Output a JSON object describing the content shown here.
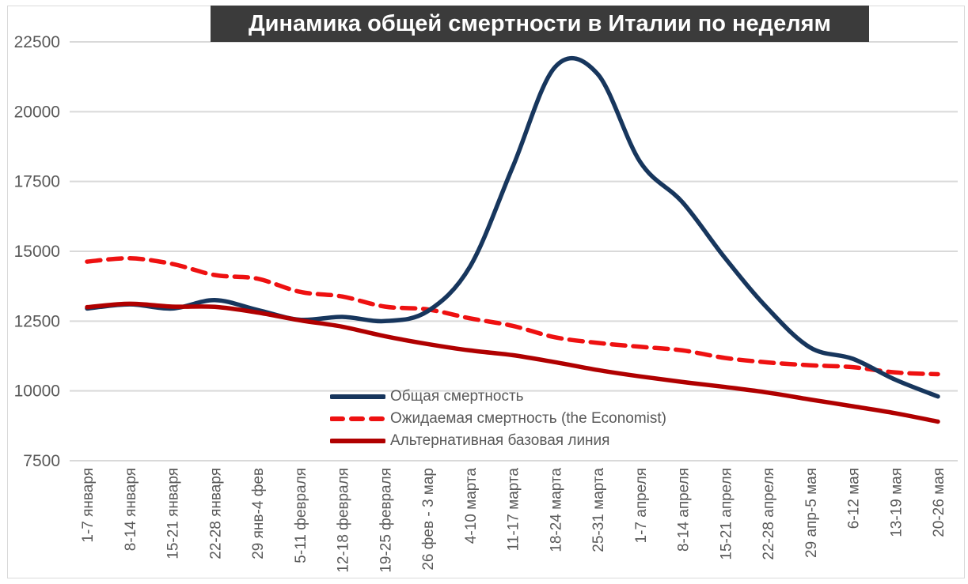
{
  "chart_data": {
    "type": "line",
    "title": "Динамика общей смертности в Италии по неделям",
    "categories": [
      "1-7 января",
      "8-14 января",
      "15-21 января",
      "22-28 января",
      "29 янв-4 фев",
      "5-11 февраля",
      "12-18 февраля",
      "19-25 февраля",
      "26 фев - 3 мар",
      "4-10 марта",
      "11-17 марта",
      "18-24 марта",
      "25-31 марта",
      "1-7 апреля",
      "8-14 апреля",
      "15-21 апреля",
      "22-28 апреля",
      "29 апр-5 мая",
      "6-12 мая",
      "13-19 мая",
      "20-26 мая"
    ],
    "series": [
      {
        "name": "Общая смертность",
        "color": "#17365d",
        "style": "solid",
        "values": [
          12950,
          13100,
          12950,
          13250,
          12900,
          12550,
          12650,
          12500,
          12850,
          14450,
          18000,
          21600,
          21350,
          18200,
          16750,
          14750,
          12950,
          11550,
          11150,
          10400,
          9800
        ]
      },
      {
        "name": "Ожидаемая смертность (the Economist)",
        "color": "#ee1111",
        "style": "dashed",
        "values": [
          14630,
          14750,
          14550,
          14150,
          14020,
          13550,
          13380,
          13020,
          12920,
          12600,
          12330,
          11920,
          11720,
          11580,
          11450,
          11180,
          11020,
          10920,
          10850,
          10660,
          10600
        ]
      },
      {
        "name": "Альтернативная базовая линия",
        "color": "#b00000",
        "style": "solid",
        "values": [
          13000,
          13120,
          13020,
          13010,
          12810,
          12530,
          12300,
          11960,
          11680,
          11450,
          11280,
          11030,
          10750,
          10520,
          10320,
          10140,
          9940,
          9690,
          9450,
          9200,
          8900
        ]
      }
    ],
    "y_axis": {
      "min": 7500,
      "max": 22500,
      "step": 2500,
      "ticks": [
        7500,
        10000,
        12500,
        15000,
        17500,
        20000,
        22500
      ]
    },
    "x_axis": {
      "label_rotation_degrees": -90
    },
    "grid": true,
    "legend_position": "bottom-center"
  }
}
